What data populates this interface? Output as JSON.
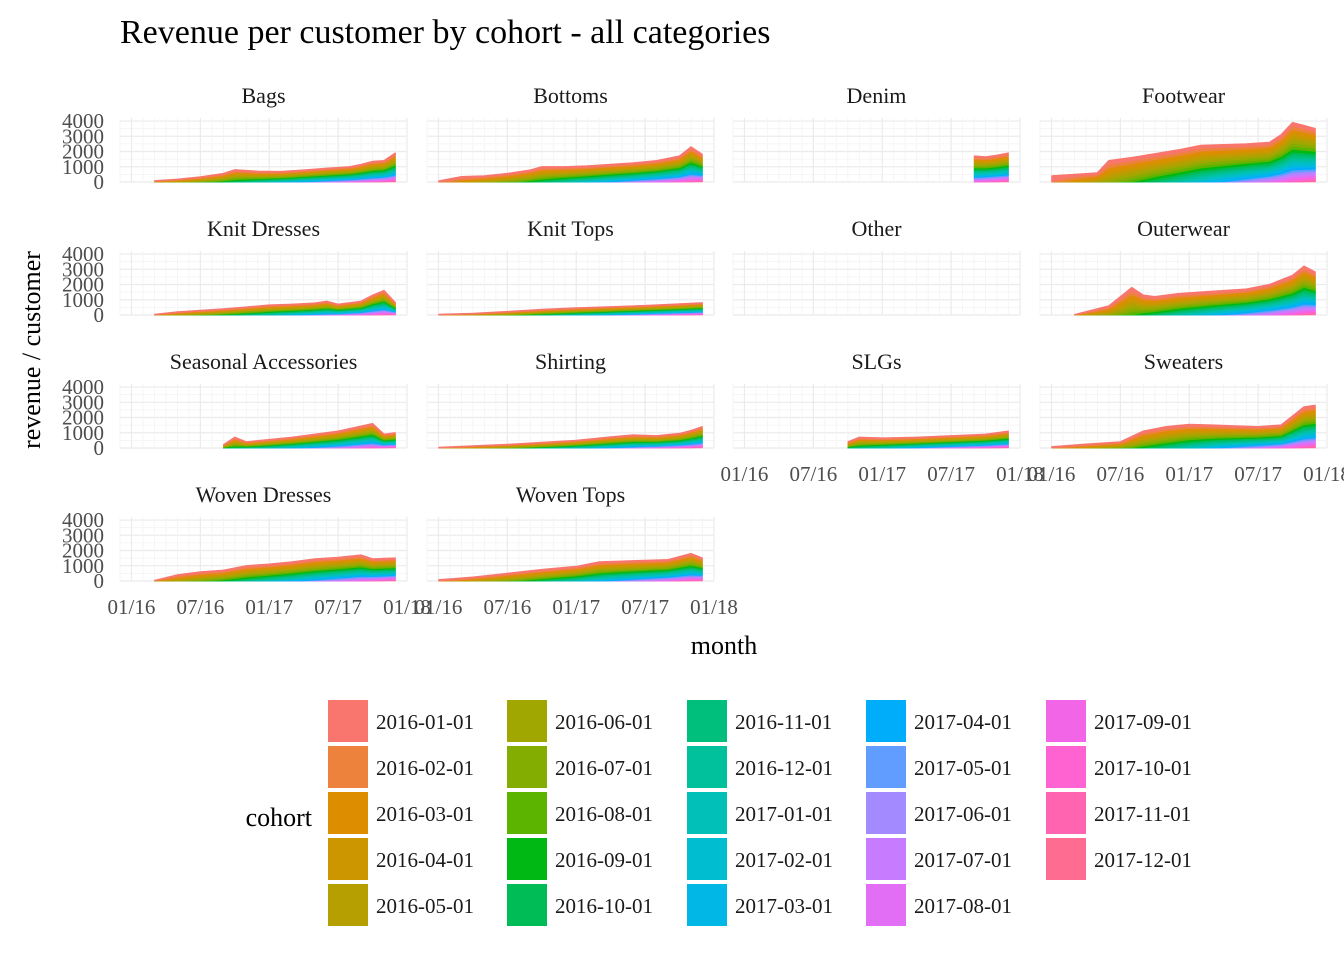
{
  "chart_data": {
    "type": "area",
    "title": "Revenue per customer by cohort - all categories",
    "xlabel": "month",
    "ylabel": "revenue / customer",
    "x_ticks": [
      "01/16",
      "07/16",
      "01/17",
      "07/17",
      "01/18"
    ],
    "x_tick_dates": [
      "2016-01-01",
      "2016-07-01",
      "2017-01-01",
      "2017-07-01",
      "2018-01-01"
    ],
    "xlim": [
      "2015-12-01",
      "2018-01-01"
    ],
    "y_ticks": [
      0,
      1000,
      2000,
      3000,
      4000
    ],
    "ylim": [
      0,
      4200
    ],
    "grid": true,
    "legend": {
      "title": "cohort",
      "position": "bottom",
      "items": [
        {
          "label": "2016-01-01",
          "color": "#F8766D"
        },
        {
          "label": "2016-02-01",
          "color": "#EC823C"
        },
        {
          "label": "2016-03-01",
          "color": "#DD8D00"
        },
        {
          "label": "2016-04-01",
          "color": "#CB9600"
        },
        {
          "label": "2016-05-01",
          "color": "#B69F00"
        },
        {
          "label": "2016-06-01",
          "color": "#9FA700"
        },
        {
          "label": "2016-07-01",
          "color": "#83AD00"
        },
        {
          "label": "2016-08-01",
          "color": "#5CB300"
        },
        {
          "label": "2016-09-01",
          "color": "#00B813"
        },
        {
          "label": "2016-10-01",
          "color": "#00BC56"
        },
        {
          "label": "2016-11-01",
          "color": "#00BF7D"
        },
        {
          "label": "2016-12-01",
          "color": "#00C19C"
        },
        {
          "label": "2017-01-01",
          "color": "#00C0B7"
        },
        {
          "label": "2017-02-01",
          "color": "#00BDD0"
        },
        {
          "label": "2017-03-01",
          "color": "#00B7E6"
        },
        {
          "label": "2017-04-01",
          "color": "#00ADFA"
        },
        {
          "label": "2017-05-01",
          "color": "#619CFF"
        },
        {
          "label": "2017-06-01",
          "color": "#A38AFF"
        },
        {
          "label": "2017-07-01",
          "color": "#C77CFF"
        },
        {
          "label": "2017-08-01",
          "color": "#E36EF6"
        },
        {
          "label": "2017-09-01",
          "color": "#F265E7"
        },
        {
          "label": "2017-10-01",
          "color": "#FE63D1"
        },
        {
          "label": "2017-11-01",
          "color": "#FF64B0"
        },
        {
          "label": "2017-12-01",
          "color": "#FF6C91"
        }
      ]
    },
    "facets": [
      {
        "name": "Bags",
        "row": 0,
        "col": 0,
        "start": "2016-03-01",
        "totals": [
          [
            "2016-03-01",
            80
          ],
          [
            "2016-05-01",
            180
          ],
          [
            "2016-07-01",
            330
          ],
          [
            "2016-09-01",
            550
          ],
          [
            "2016-10-01",
            800
          ],
          [
            "2016-12-01",
            700
          ],
          [
            "2017-02-01",
            680
          ],
          [
            "2017-04-01",
            780
          ],
          [
            "2017-06-01",
            900
          ],
          [
            "2017-08-01",
            1000
          ],
          [
            "2017-09-01",
            1150
          ],
          [
            "2017-10-01",
            1350
          ],
          [
            "2017-11-01",
            1400
          ],
          [
            "2017-12-01",
            1900
          ]
        ]
      },
      {
        "name": "Bottoms",
        "row": 0,
        "col": 1,
        "start": "2016-01-01",
        "totals": [
          [
            "2016-01-01",
            60
          ],
          [
            "2016-03-01",
            350
          ],
          [
            "2016-05-01",
            400
          ],
          [
            "2016-07-01",
            550
          ],
          [
            "2016-09-01",
            780
          ],
          [
            "2016-10-01",
            1000
          ],
          [
            "2016-12-01",
            1000
          ],
          [
            "2017-02-01",
            1050
          ],
          [
            "2017-04-01",
            1150
          ],
          [
            "2017-06-01",
            1250
          ],
          [
            "2017-08-01",
            1400
          ],
          [
            "2017-10-01",
            1700
          ],
          [
            "2017-11-01",
            2300
          ],
          [
            "2017-12-01",
            1800
          ]
        ]
      },
      {
        "name": "Denim",
        "row": 0,
        "col": 2,
        "start": "2017-09-01",
        "totals": [
          [
            "2017-09-01",
            1700
          ],
          [
            "2017-10-01",
            1650
          ],
          [
            "2017-11-01",
            1750
          ],
          [
            "2017-12-01",
            1900
          ]
        ]
      },
      {
        "name": "Footwear",
        "row": 0,
        "col": 3,
        "start": "2016-01-01",
        "totals": [
          [
            "2016-01-01",
            400
          ],
          [
            "2016-03-01",
            500
          ],
          [
            "2016-05-01",
            600
          ],
          [
            "2016-06-01",
            1400
          ],
          [
            "2016-08-01",
            1600
          ],
          [
            "2016-10-01",
            1850
          ],
          [
            "2016-12-01",
            2100
          ],
          [
            "2017-02-01",
            2400
          ],
          [
            "2017-04-01",
            2450
          ],
          [
            "2017-06-01",
            2500
          ],
          [
            "2017-08-01",
            2600
          ],
          [
            "2017-09-01",
            3100
          ],
          [
            "2017-10-01",
            3900
          ],
          [
            "2017-11-01",
            3700
          ],
          [
            "2017-12-01",
            3500
          ]
        ]
      },
      {
        "name": "Knit Dresses",
        "row": 1,
        "col": 0,
        "start": "2016-03-01",
        "totals": [
          [
            "2016-03-01",
            30
          ],
          [
            "2016-05-01",
            200
          ],
          [
            "2016-07-01",
            300
          ],
          [
            "2016-09-01",
            400
          ],
          [
            "2016-11-01",
            520
          ],
          [
            "2017-01-01",
            650
          ],
          [
            "2017-03-01",
            700
          ],
          [
            "2017-05-01",
            780
          ],
          [
            "2017-06-01",
            900
          ],
          [
            "2017-07-01",
            700
          ],
          [
            "2017-09-01",
            900
          ],
          [
            "2017-10-01",
            1300
          ],
          [
            "2017-11-01",
            1600
          ],
          [
            "2017-12-01",
            800
          ]
        ]
      },
      {
        "name": "Knit Tops",
        "row": 1,
        "col": 1,
        "start": "2016-01-01",
        "totals": [
          [
            "2016-01-01",
            30
          ],
          [
            "2016-04-01",
            100
          ],
          [
            "2016-07-01",
            220
          ],
          [
            "2016-10-01",
            360
          ],
          [
            "2017-01-01",
            460
          ],
          [
            "2017-04-01",
            540
          ],
          [
            "2017-07-01",
            620
          ],
          [
            "2017-10-01",
            720
          ],
          [
            "2017-12-01",
            800
          ]
        ]
      },
      {
        "name": "Other",
        "row": 1,
        "col": 2,
        "start": null,
        "totals": []
      },
      {
        "name": "Outerwear",
        "row": 1,
        "col": 3,
        "start": "2016-03-01",
        "totals": [
          [
            "2016-03-01",
            20
          ],
          [
            "2016-06-01",
            600
          ],
          [
            "2016-08-01",
            1800
          ],
          [
            "2016-09-01",
            1300
          ],
          [
            "2016-10-01",
            1200
          ],
          [
            "2016-12-01",
            1400
          ],
          [
            "2017-02-01",
            1500
          ],
          [
            "2017-04-01",
            1600
          ],
          [
            "2017-06-01",
            1700
          ],
          [
            "2017-08-01",
            2000
          ],
          [
            "2017-10-01",
            2600
          ],
          [
            "2017-11-01",
            3200
          ],
          [
            "2017-12-01",
            2800
          ]
        ]
      },
      {
        "name": "Seasonal Accessories",
        "row": 2,
        "col": 0,
        "start": "2016-09-01",
        "totals": [
          [
            "2016-09-01",
            200
          ],
          [
            "2016-10-01",
            700
          ],
          [
            "2016-11-01",
            400
          ],
          [
            "2017-03-01",
            700
          ],
          [
            "2017-07-01",
            1100
          ],
          [
            "2017-10-01",
            1600
          ],
          [
            "2017-11-01",
            900
          ],
          [
            "2017-12-01",
            1000
          ]
        ]
      },
      {
        "name": "Shirting",
        "row": 2,
        "col": 1,
        "start": "2016-01-01",
        "totals": [
          [
            "2016-01-01",
            30
          ],
          [
            "2016-04-01",
            130
          ],
          [
            "2016-07-01",
            230
          ],
          [
            "2016-10-01",
            360
          ],
          [
            "2017-01-01",
            500
          ],
          [
            "2017-04-01",
            720
          ],
          [
            "2017-06-01",
            850
          ],
          [
            "2017-08-01",
            800
          ],
          [
            "2017-10-01",
            950
          ],
          [
            "2017-11-01",
            1150
          ],
          [
            "2017-12-01",
            1400
          ]
        ]
      },
      {
        "name": "SLGs",
        "row": 2,
        "col": 2,
        "start": "2016-10-01",
        "totals": [
          [
            "2016-10-01",
            400
          ],
          [
            "2016-11-01",
            700
          ],
          [
            "2017-01-01",
            650
          ],
          [
            "2017-04-01",
            700
          ],
          [
            "2017-07-01",
            800
          ],
          [
            "2017-10-01",
            900
          ],
          [
            "2017-12-01",
            1100
          ]
        ]
      },
      {
        "name": "Sweaters",
        "row": 2,
        "col": 3,
        "start": "2016-01-01",
        "totals": [
          [
            "2016-01-01",
            80
          ],
          [
            "2016-04-01",
            250
          ],
          [
            "2016-07-01",
            400
          ],
          [
            "2016-09-01",
            1100
          ],
          [
            "2016-11-01",
            1400
          ],
          [
            "2017-01-01",
            1550
          ],
          [
            "2017-03-01",
            1500
          ],
          [
            "2017-05-01",
            1450
          ],
          [
            "2017-07-01",
            1400
          ],
          [
            "2017-09-01",
            1500
          ],
          [
            "2017-10-01",
            2100
          ],
          [
            "2017-11-01",
            2700
          ],
          [
            "2017-12-01",
            2800
          ]
        ]
      },
      {
        "name": "Woven Dresses",
        "row": 3,
        "col": 0,
        "start": "2016-03-01",
        "totals": [
          [
            "2016-03-01",
            30
          ],
          [
            "2016-05-01",
            400
          ],
          [
            "2016-07-01",
            600
          ],
          [
            "2016-09-01",
            700
          ],
          [
            "2016-11-01",
            1000
          ],
          [
            "2017-01-01",
            1100
          ],
          [
            "2017-03-01",
            1250
          ],
          [
            "2017-05-01",
            1450
          ],
          [
            "2017-07-01",
            1550
          ],
          [
            "2017-09-01",
            1700
          ],
          [
            "2017-10-01",
            1450
          ],
          [
            "2017-12-01",
            1500
          ]
        ]
      },
      {
        "name": "Woven Tops",
        "row": 3,
        "col": 1,
        "start": "2016-01-01",
        "totals": [
          [
            "2016-01-01",
            80
          ],
          [
            "2016-04-01",
            250
          ],
          [
            "2016-07-01",
            500
          ],
          [
            "2016-10-01",
            750
          ],
          [
            "2017-01-01",
            950
          ],
          [
            "2017-03-01",
            1250
          ],
          [
            "2017-05-01",
            1300
          ],
          [
            "2017-07-01",
            1350
          ],
          [
            "2017-09-01",
            1400
          ],
          [
            "2017-11-01",
            1800
          ],
          [
            "2017-12-01",
            1500
          ]
        ]
      }
    ]
  }
}
